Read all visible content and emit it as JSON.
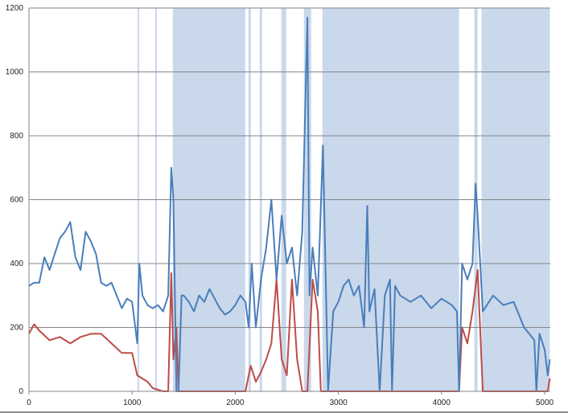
{
  "chart_data": {
    "type": "line",
    "title": "",
    "xlabel": "",
    "ylabel": "",
    "xlim": [
      0,
      5050
    ],
    "ylim": [
      0,
      1200
    ],
    "xticks": [
      0,
      1000,
      2000,
      3000,
      4000,
      5000
    ],
    "yticks": [
      0,
      200,
      400,
      600,
      800,
      1000,
      1200
    ],
    "grid": "horizontal",
    "legend": "none",
    "shaded_ranges": [
      [
        1052,
        1068
      ],
      [
        1224,
        1239
      ],
      [
        1395,
        2097
      ],
      [
        2128,
        2151
      ],
      [
        2237,
        2260
      ],
      [
        2447,
        2494
      ],
      [
        2666,
        2736
      ],
      [
        2845,
        4170
      ],
      [
        4318,
        4349
      ],
      [
        4388,
        5050
      ]
    ],
    "shade_color": "#c9d8eb",
    "series": [
      {
        "color": "#4a7ebb",
        "x": [
          0,
          50,
          100,
          150,
          200,
          250,
          300,
          350,
          400,
          450,
          500,
          550,
          600,
          650,
          700,
          750,
          800,
          850,
          900,
          950,
          1000,
          1050,
          1070,
          1100,
          1150,
          1200,
          1250,
          1300,
          1350,
          1380,
          1400,
          1430,
          1450,
          1480,
          1500,
          1550,
          1600,
          1650,
          1700,
          1750,
          1800,
          1850,
          1900,
          1950,
          2000,
          2050,
          2100,
          2130,
          2160,
          2200,
          2250,
          2300,
          2350,
          2400,
          2450,
          2500,
          2550,
          2600,
          2650,
          2700,
          2720,
          2750,
          2800,
          2850,
          2900,
          2950,
          3000,
          3050,
          3100,
          3150,
          3200,
          3250,
          3280,
          3300,
          3350,
          3400,
          3450,
          3500,
          3520,
          3550,
          3600,
          3700,
          3800,
          3900,
          4000,
          4100,
          4150,
          4170,
          4200,
          4250,
          4300,
          4330,
          4350,
          4400,
          4500,
          4600,
          4700,
          4800,
          4900,
          4920,
          4950,
          5000,
          5030,
          5050
        ],
        "values": [
          330,
          340,
          340,
          420,
          380,
          430,
          480,
          500,
          530,
          420,
          380,
          500,
          470,
          430,
          340,
          330,
          340,
          300,
          260,
          290,
          280,
          150,
          400,
          300,
          270,
          260,
          270,
          250,
          300,
          700,
          600,
          0,
          0,
          300,
          300,
          280,
          250,
          300,
          280,
          320,
          290,
          260,
          240,
          250,
          270,
          300,
          280,
          200,
          400,
          200,
          350,
          450,
          600,
          350,
          550,
          400,
          450,
          300,
          500,
          1170,
          300,
          450,
          300,
          770,
          0,
          250,
          280,
          330,
          350,
          300,
          330,
          200,
          580,
          250,
          320,
          0,
          300,
          350,
          0,
          330,
          300,
          280,
          300,
          260,
          290,
          270,
          250,
          0,
          400,
          350,
          400,
          650,
          550,
          250,
          300,
          270,
          280,
          200,
          160,
          0,
          180,
          130,
          50,
          100
        ]
      },
      {
        "color": "#be4b48",
        "x": [
          0,
          50,
          100,
          200,
          300,
          400,
          500,
          600,
          700,
          800,
          900,
          1000,
          1050,
          1100,
          1150,
          1200,
          1300,
          1350,
          1380,
          1400,
          1430,
          1450,
          2100,
          2130,
          2150,
          2200,
          2250,
          2300,
          2350,
          2400,
          2450,
          2500,
          2550,
          2600,
          2650,
          2700,
          2750,
          2800,
          2830,
          4170,
          4200,
          4250,
          4300,
          4350,
          4400,
          5030,
          5050
        ],
        "values": [
          180,
          210,
          190,
          160,
          170,
          150,
          170,
          180,
          180,
          150,
          120,
          120,
          50,
          40,
          30,
          10,
          0,
          0,
          370,
          100,
          200,
          0,
          0,
          50,
          80,
          30,
          60,
          100,
          150,
          350,
          100,
          50,
          350,
          100,
          0,
          0,
          350,
          250,
          0,
          0,
          200,
          150,
          250,
          380,
          0,
          0,
          40
        ]
      }
    ]
  }
}
